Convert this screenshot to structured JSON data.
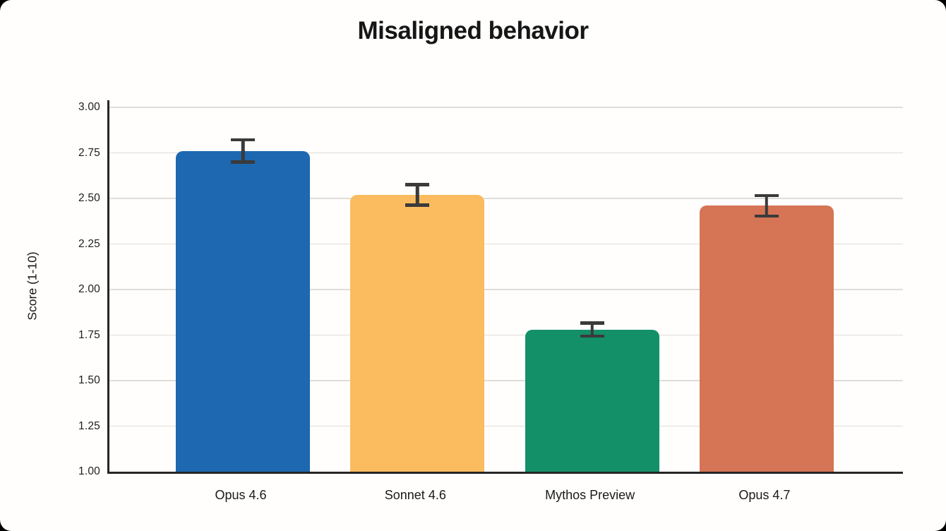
{
  "title": "Misaligned behavior",
  "chart_data": {
    "type": "bar",
    "title": "Misaligned behavior",
    "categories": [
      "Opus 4.6",
      "Sonnet 4.6",
      "Mythos Preview",
      "Opus 4.7"
    ],
    "values": [
      2.76,
      2.52,
      1.78,
      2.46
    ],
    "errors": [
      0.07,
      0.065,
      0.045,
      0.065
    ],
    "bar_colors": [
      "#1d68b1",
      "#fabc5f",
      "#149069",
      "#d57555"
    ],
    "xlabel": "",
    "ylabel": "Score (1-10)",
    "ylim": [
      1.0,
      3.0
    ],
    "ytick_step": 0.25,
    "ytick_labels": [
      "3.00",
      "2.75",
      "2.50",
      "2.25",
      "2.00",
      "1.75",
      "1.50",
      "1.25",
      "1.00"
    ],
    "grid": true,
    "legend": false
  },
  "colors": {
    "background": "#fffefc",
    "axis": "#262626",
    "gridline": "#deddda",
    "error_bar": "#3a3a3a",
    "text": "#161616"
  }
}
